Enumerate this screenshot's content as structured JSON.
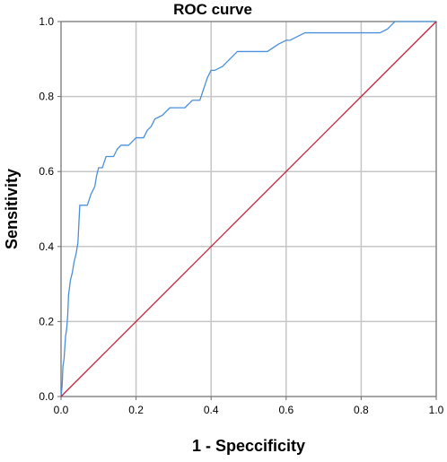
{
  "chart_data": {
    "type": "line",
    "title": "ROC curve",
    "xlabel": "1 - Speccificity",
    "ylabel": "Sensitivity",
    "xlim": [
      0,
      1
    ],
    "ylim": [
      0,
      1
    ],
    "x_ticks": [
      "0.0",
      "0.2",
      "0.4",
      "0.6",
      "0.8",
      "1.0"
    ],
    "y_ticks": [
      "0.0",
      "0.2",
      "0.4",
      "0.6",
      "0.8",
      "1.0"
    ],
    "grid": true,
    "legend": "none",
    "series": [
      {
        "color": "#4a8fd9",
        "x": [
          0,
          0.003,
          0.005,
          0.008,
          0.01,
          0.012,
          0.015,
          0.018,
          0.02,
          0.025,
          0.03,
          0.035,
          0.04,
          0.045,
          0.05,
          0.055,
          0.06,
          0.065,
          0.07,
          0.08,
          0.09,
          0.095,
          0.1,
          0.11,
          0.12,
          0.13,
          0.14,
          0.15,
          0.16,
          0.18,
          0.2,
          0.22,
          0.23,
          0.24,
          0.25,
          0.27,
          0.29,
          0.31,
          0.33,
          0.35,
          0.36,
          0.37,
          0.38,
          0.39,
          0.4,
          0.41,
          0.43,
          0.45,
          0.47,
          0.49,
          0.5,
          0.52,
          0.55,
          0.58,
          0.6,
          0.61,
          0.63,
          0.65,
          0.67,
          0.7,
          0.75,
          0.8,
          0.85,
          0.87,
          0.88,
          0.89,
          0.92,
          1.0
        ],
        "y": [
          0,
          0.03,
          0.08,
          0.1,
          0.13,
          0.16,
          0.18,
          0.22,
          0.27,
          0.31,
          0.33,
          0.36,
          0.38,
          0.41,
          0.51,
          0.51,
          0.51,
          0.51,
          0.51,
          0.54,
          0.56,
          0.59,
          0.61,
          0.61,
          0.64,
          0.64,
          0.64,
          0.66,
          0.67,
          0.67,
          0.69,
          0.69,
          0.71,
          0.72,
          0.74,
          0.75,
          0.77,
          0.77,
          0.77,
          0.79,
          0.79,
          0.79,
          0.82,
          0.85,
          0.87,
          0.87,
          0.88,
          0.9,
          0.92,
          0.92,
          0.92,
          0.92,
          0.92,
          0.94,
          0.95,
          0.95,
          0.96,
          0.97,
          0.97,
          0.97,
          0.97,
          0.97,
          0.97,
          0.98,
          0.99,
          1.0,
          1.0,
          1.0
        ]
      },
      {
        "color": "#c0203a",
        "x": [
          0,
          1
        ],
        "y": [
          0,
          1
        ]
      }
    ]
  }
}
